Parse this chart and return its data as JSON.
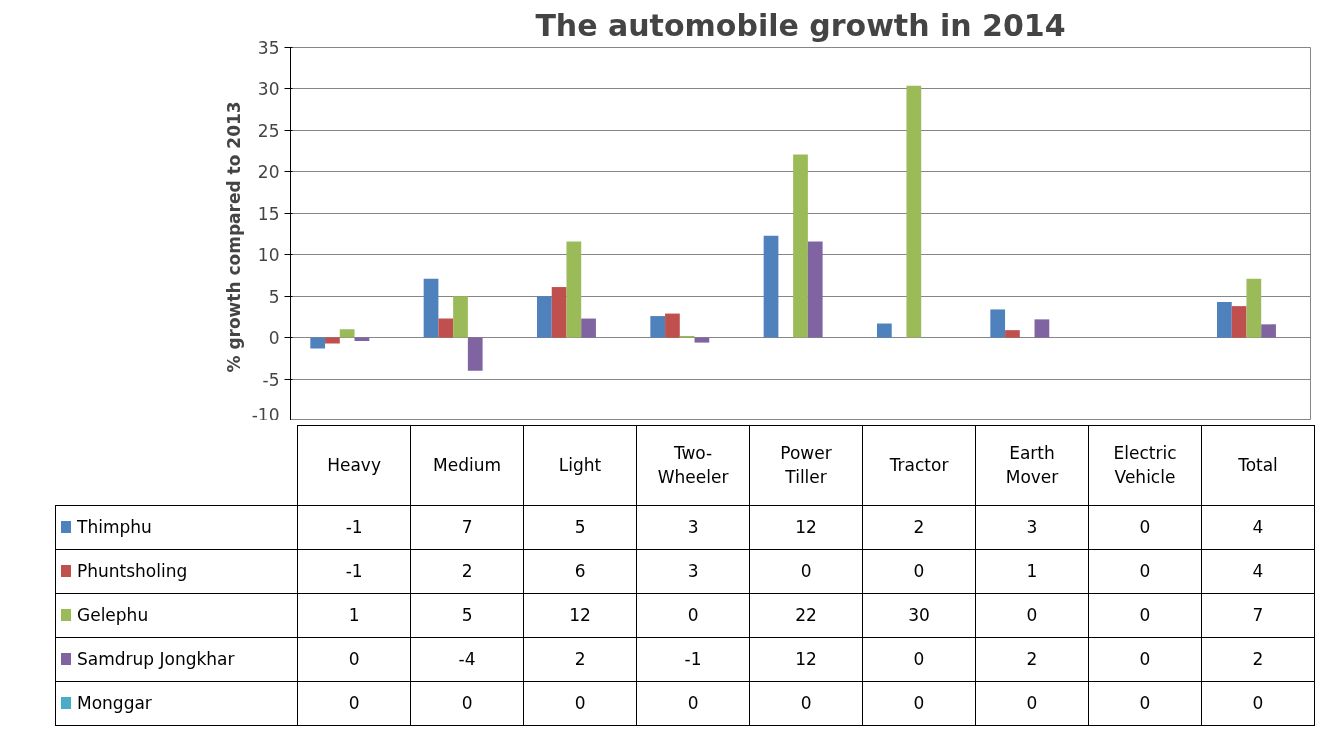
{
  "chart_data": {
    "type": "bar",
    "title": "The automobile growth in 2014",
    "ylabel": "% growth compared to  2013",
    "categories": [
      "Heavy",
      "Medium",
      "Light",
      "Two-Wheeler",
      "Power Tiller",
      "Tractor",
      "Earth Mover",
      "Electric Vehicle",
      "Total"
    ],
    "ylim": [
      -10,
      35
    ],
    "yticks": [
      -10,
      -5,
      0,
      5,
      10,
      15,
      20,
      25,
      30,
      35
    ],
    "grid": "y",
    "legend": "bottom left",
    "series": [
      {
        "name": "Thimphu",
        "color": "#4f81bd",
        "values": [
          -1.3,
          7.1,
          5.0,
          2.6,
          12.3,
          1.7,
          3.4,
          0,
          4.3
        ],
        "value_labels": [
          "-1",
          "7",
          "5",
          "3",
          "12",
          "2",
          "3",
          "0",
          "4"
        ]
      },
      {
        "name": "Phuntsholing",
        "color": "#c0504d",
        "values": [
          -0.7,
          2.3,
          6.1,
          2.9,
          0,
          0,
          0.9,
          0,
          3.8
        ],
        "value_labels": [
          "-1",
          "2",
          "6",
          "3",
          "0",
          "0",
          "1",
          "0",
          "4"
        ]
      },
      {
        "name": "Gelephu",
        "color": "#9bbb59",
        "values": [
          1.0,
          5.0,
          11.6,
          0.2,
          22.1,
          30.4,
          0,
          0,
          7.1
        ],
        "value_labels": [
          "1",
          "5",
          "12",
          "0",
          "22",
          "30",
          "0",
          "0",
          "7"
        ]
      },
      {
        "name": "Samdrup Jongkhar",
        "color": "#8064a2",
        "values": [
          -0.4,
          -4.0,
          2.3,
          -0.6,
          11.6,
          0,
          2.2,
          0,
          1.6
        ],
        "value_labels": [
          "0",
          "-4",
          "2",
          "-1",
          "12",
          "0",
          "2",
          "0",
          "2"
        ]
      },
      {
        "name": "Monggar",
        "color": "#4bacc6",
        "values": [
          0,
          0,
          0,
          0,
          0,
          0,
          0,
          0,
          0
        ],
        "value_labels": [
          "0",
          "0",
          "0",
          "0",
          "0",
          "0",
          "0",
          "0",
          "0"
        ]
      }
    ]
  }
}
